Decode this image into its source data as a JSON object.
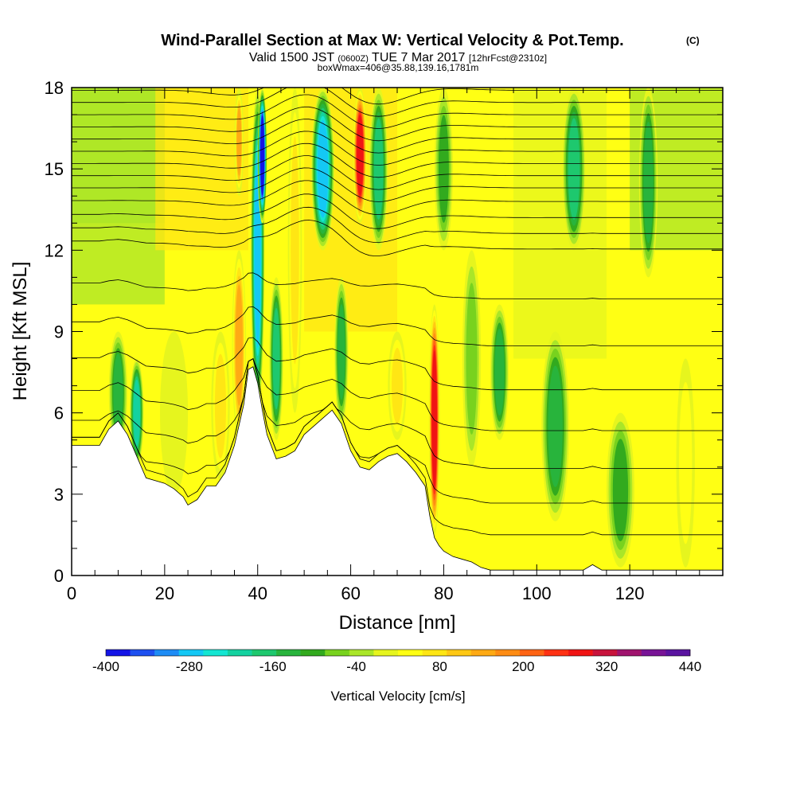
{
  "title": "Wind-Parallel Section at Max W: Vertical Velocity & Pot.Temp.",
  "copyright": "(C)",
  "subtitle_parts": {
    "valid": "Valid 1500 JST",
    "utc": "(0600Z)",
    "date": "TUE 7 Mar 2017",
    "fcst": "[12hrFcst@2310z]"
  },
  "subtitle2": "boxWmax=406@35.88,139.16,1781m",
  "chart_data": {
    "type": "heatmap",
    "xlabel": "Distance [nm]",
    "ylabel": "Height [Kft MSL]",
    "xlim": [
      0,
      140
    ],
    "ylim": [
      0,
      18
    ],
    "x_ticks": [
      0,
      20,
      40,
      60,
      80,
      100,
      120
    ],
    "y_ticks": [
      0,
      3,
      6,
      9,
      12,
      15,
      18
    ],
    "colorbar": {
      "title": "Vertical Velocity [cm/s]",
      "min": -400,
      "max": 440,
      "step": 40,
      "tick_labels": [
        -400,
        -280,
        -160,
        -40,
        80,
        200,
        320,
        440
      ],
      "colors": [
        "#1414e6",
        "#1e50f0",
        "#1e8cf5",
        "#14c8f5",
        "#14e6d2",
        "#14d2a0",
        "#1ec86e",
        "#28b43c",
        "#32aa1e",
        "#78d21e",
        "#aae628",
        "#e6f51e",
        "#ffff14",
        "#ffe614",
        "#ffc814",
        "#ffaa14",
        "#ff8c14",
        "#ff6414",
        "#ff3214",
        "#f01414",
        "#c8143c",
        "#a0146e",
        "#781496",
        "#5a14a0"
      ]
    },
    "terrain_profile": [
      [
        0,
        4.8
      ],
      [
        6,
        4.8
      ],
      [
        8,
        5.4
      ],
      [
        10,
        5.7
      ],
      [
        12,
        5.2
      ],
      [
        14,
        4.4
      ],
      [
        16,
        3.6
      ],
      [
        20,
        3.4
      ],
      [
        22,
        3.2
      ],
      [
        24,
        2.9
      ],
      [
        25,
        2.6
      ],
      [
        27,
        2.8
      ],
      [
        29,
        3.3
      ],
      [
        31,
        3.3
      ],
      [
        33,
        3.8
      ],
      [
        35,
        4.8
      ],
      [
        37,
        6.3
      ],
      [
        38,
        7.6
      ],
      [
        39,
        7.7
      ],
      [
        40,
        7.1
      ],
      [
        41,
        6.1
      ],
      [
        42,
        5.2
      ],
      [
        44,
        4.3
      ],
      [
        46,
        4.4
      ],
      [
        48,
        4.6
      ],
      [
        50,
        5.2
      ],
      [
        52,
        5.5
      ],
      [
        54,
        5.8
      ],
      [
        56,
        6.1
      ],
      [
        58,
        5.6
      ],
      [
        60,
        4.6
      ],
      [
        62,
        4.0
      ],
      [
        64,
        3.9
      ],
      [
        66,
        4.2
      ],
      [
        68,
        4.4
      ],
      [
        70,
        4.5
      ],
      [
        72,
        4.2
      ],
      [
        74,
        3.8
      ],
      [
        76,
        3.3
      ],
      [
        77,
        2.2
      ],
      [
        78,
        1.4
      ],
      [
        79,
        1.1
      ],
      [
        80,
        0.9
      ],
      [
        82,
        0.7
      ],
      [
        84,
        0.6
      ],
      [
        86,
        0.5
      ],
      [
        88,
        0.3
      ],
      [
        90,
        0.2
      ],
      [
        110,
        0.2
      ],
      [
        112,
        0.4
      ],
      [
        114,
        0.2
      ],
      [
        140,
        0.2
      ]
    ],
    "features": [
      {
        "x": 10,
        "width": 2.0,
        "y_bottom": 4.5,
        "y_top": 9.0,
        "value": -120
      },
      {
        "x": 14,
        "width": 1.5,
        "y_bottom": 4.0,
        "y_top": 8.0,
        "value": -200
      },
      {
        "x": 22,
        "width": 3.0,
        "y_bottom": 3.0,
        "y_top": 9.0,
        "value": 40
      },
      {
        "x": 32,
        "width": 2.0,
        "y_bottom": 3.5,
        "y_top": 9.0,
        "value": 120
      },
      {
        "x": 36,
        "width": 1.5,
        "y_bottom": 5.0,
        "y_top": 12.0,
        "value": 200
      },
      {
        "x": 36,
        "width": 1.0,
        "y_bottom": 14.0,
        "y_top": 18.0,
        "value": 220
      },
      {
        "x": 40,
        "width": 1.5,
        "y_bottom": 6.0,
        "y_top": 18.0,
        "value": -280
      },
      {
        "x": 41,
        "width": 1.0,
        "y_bottom": 13.0,
        "y_top": 18.0,
        "value": -400
      },
      {
        "x": 44,
        "width": 1.5,
        "y_bottom": 5.0,
        "y_top": 11.0,
        "value": -160
      },
      {
        "x": 48,
        "width": 1.5,
        "y_bottom": 6.0,
        "y_top": 18.0,
        "value": 120
      },
      {
        "x": 54,
        "width": 2.5,
        "y_bottom": 12.0,
        "y_top": 18.0,
        "value": -280
      },
      {
        "x": 58,
        "width": 1.5,
        "y_bottom": 5.5,
        "y_top": 11.0,
        "value": -120
      },
      {
        "x": 62,
        "width": 1.5,
        "y_bottom": 13.0,
        "y_top": 18.0,
        "value": 360
      },
      {
        "x": 66,
        "width": 2.0,
        "y_bottom": 12.0,
        "y_top": 18.0,
        "value": -160
      },
      {
        "x": 70,
        "width": 2.0,
        "y_bottom": 5.0,
        "y_top": 9.0,
        "value": 120
      },
      {
        "x": 78,
        "width": 1.2,
        "y_bottom": 1.5,
        "y_top": 10.0,
        "value": 360
      },
      {
        "x": 80,
        "width": 2.0,
        "y_bottom": 12.0,
        "y_top": 18.0,
        "value": -80
      },
      {
        "x": 86,
        "width": 2.0,
        "y_bottom": 4.0,
        "y_top": 12.0,
        "value": -40
      },
      {
        "x": 92,
        "width": 2.0,
        "y_bottom": 5.0,
        "y_top": 10.0,
        "value": -120
      },
      {
        "x": 104,
        "width": 3.0,
        "y_bottom": 2.0,
        "y_top": 9.0,
        "value": -120
      },
      {
        "x": 108,
        "width": 2.5,
        "y_bottom": 12.0,
        "y_top": 18.0,
        "value": -160
      },
      {
        "x": 118,
        "width": 3.0,
        "y_bottom": 0.3,
        "y_top": 6.0,
        "value": -80
      },
      {
        "x": 124,
        "width": 2.0,
        "y_bottom": 11.0,
        "y_top": 18.0,
        "value": -120
      },
      {
        "x": 132,
        "width": 2.0,
        "y_bottom": 0.3,
        "y_top": 8.0,
        "value": 80
      }
    ]
  }
}
